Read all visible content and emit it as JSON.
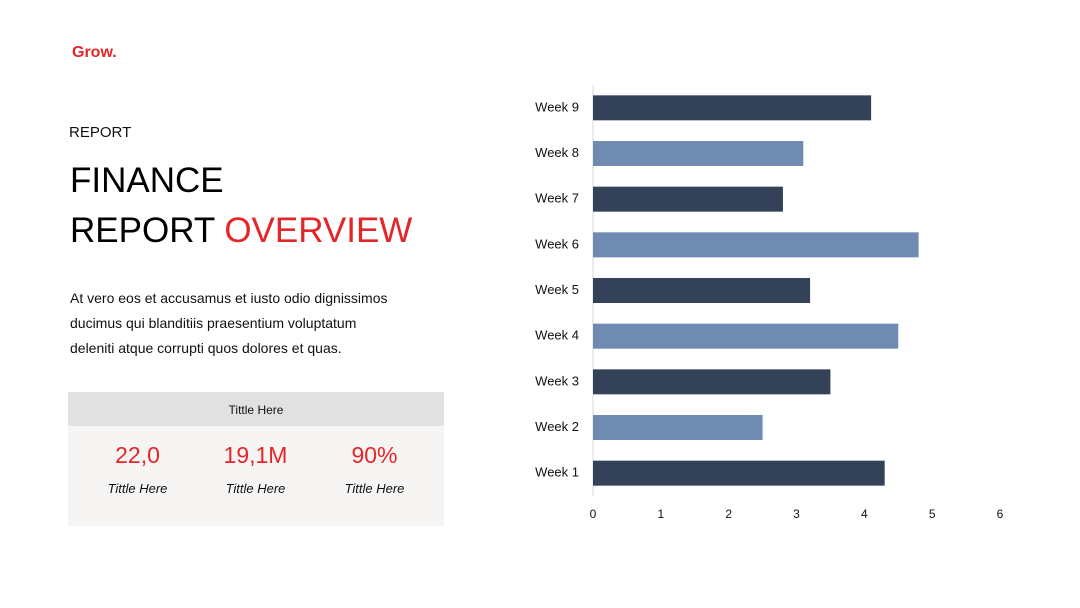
{
  "brand": "Grow.",
  "header": {
    "kicker": "REPORT",
    "title_line1": "FINANCE",
    "title_line2": "REPORT",
    "title_highlight": "OVERVIEW"
  },
  "body": {
    "lines": [
      "At vero eos et accusamus et iusto odio dignissimos",
      "ducimus qui blanditiis praesentium voluptatum",
      "deleniti atque corrupti quos dolores et quas."
    ]
  },
  "stats": {
    "header": "Tittle Here",
    "items": [
      {
        "value": "22,0",
        "label": "Tittle Here"
      },
      {
        "value": "19,1M",
        "label": "Tittle Here"
      },
      {
        "value": "90%",
        "label": "Tittle Here"
      }
    ]
  },
  "chart_data": {
    "type": "hbar",
    "categories": [
      "Week 1",
      "Week 2",
      "Week 3",
      "Week 4",
      "Week 5",
      "Week 6",
      "Week 7",
      "Week 8",
      "Week 9"
    ],
    "values": [
      4.3,
      2.5,
      3.5,
      4.5,
      3.2,
      4.8,
      2.8,
      3.1,
      4.1
    ],
    "colors": [
      "#334259",
      "#6f8bb1",
      "#334259",
      "#6f8bb1",
      "#334259",
      "#6f8bb1",
      "#334259",
      "#6f8bb1",
      "#334259"
    ],
    "xlim": [
      0,
      6
    ],
    "xticks": [
      0,
      1,
      2,
      3,
      4,
      5,
      6
    ],
    "grid": false
  }
}
